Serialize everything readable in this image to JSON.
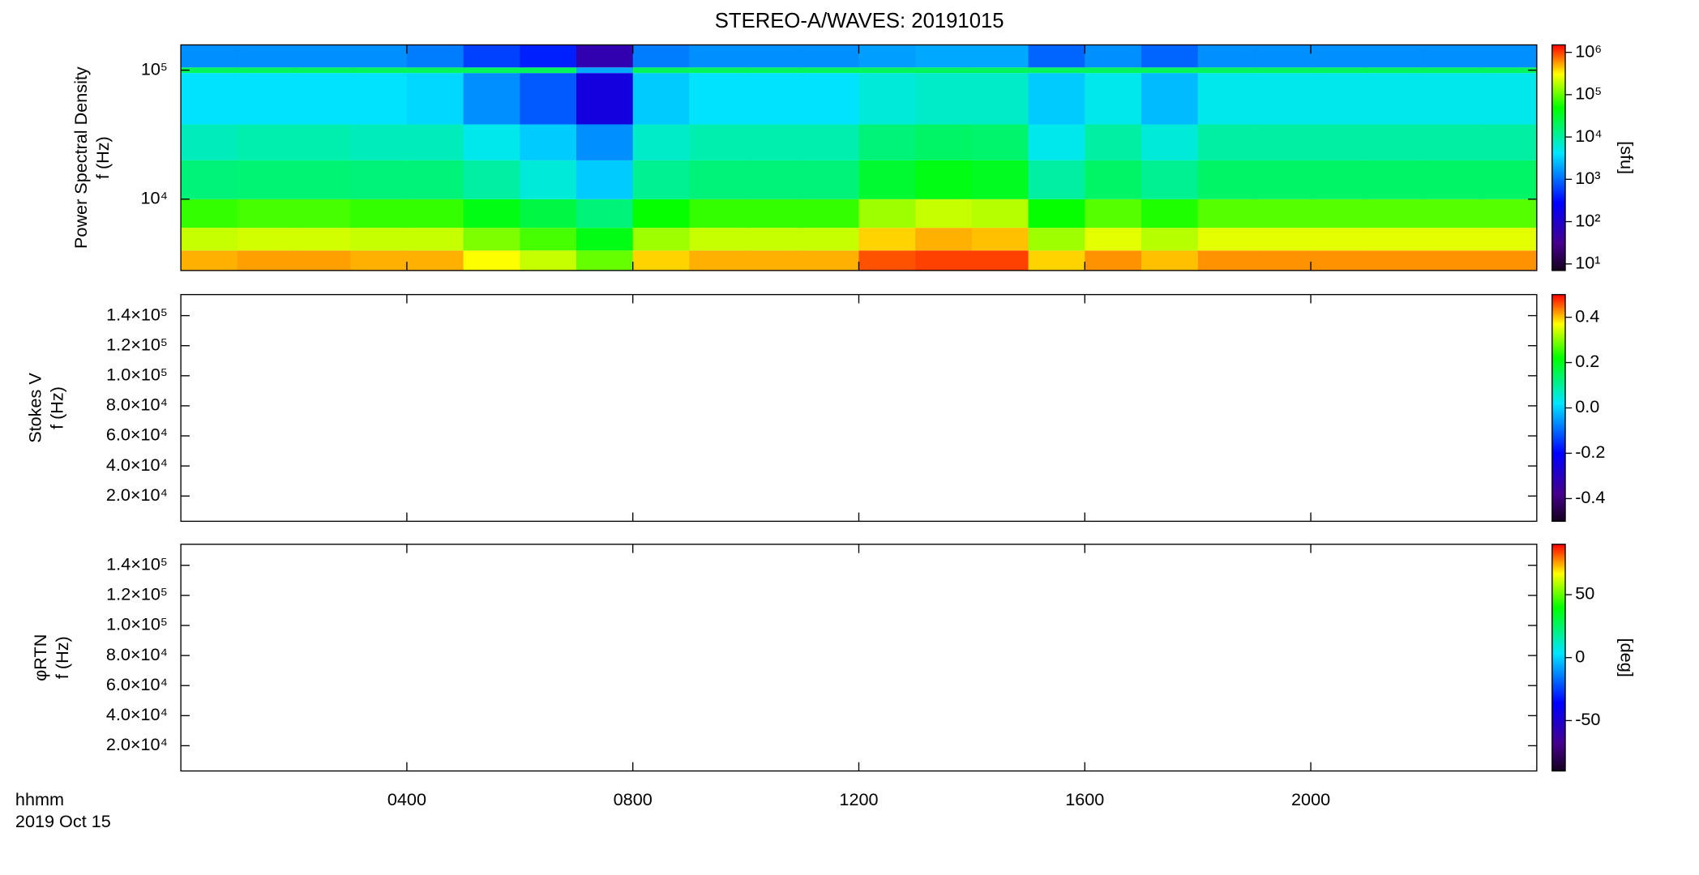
{
  "chart_data": {
    "type": "spectrogram",
    "title": "STEREO-A/WAVES: 20191015",
    "xlabel": "hhmm",
    "date": "2019 Oct 15",
    "xlim": [
      0,
      24
    ],
    "xticks": [
      {
        "value": 4,
        "label": "0400"
      },
      {
        "value": 8,
        "label": "0800"
      },
      {
        "value": 12,
        "label": "1200"
      },
      {
        "value": 16,
        "label": "1600"
      },
      {
        "value": 20,
        "label": "2000"
      }
    ],
    "panels": [
      {
        "ylabel": [
          "Power Spectral Density",
          "f (Hz)"
        ],
        "log_y": true,
        "ylim": [
          2800,
          157000
        ],
        "yticks": [
          {
            "value": 10000,
            "label": "10⁴"
          },
          {
            "value": 100000,
            "label": "10⁵"
          }
        ],
        "colorbar": {
          "label": "[sfu]",
          "log": true,
          "lim": [
            7,
            1500000
          ],
          "ticks": [
            {
              "value": 10,
              "label": "10¹"
            },
            {
              "value": 100,
              "label": "10²"
            },
            {
              "value": 1000,
              "label": "10³"
            },
            {
              "value": 10000,
              "label": "10⁴"
            },
            {
              "value": 100000,
              "label": "10⁵"
            },
            {
              "value": 1000000,
              "label": "10⁶"
            }
          ]
        },
        "time_edges": [
          0,
          1,
          2,
          3,
          4,
          5,
          6,
          7,
          8,
          9,
          10,
          11,
          12,
          13,
          14,
          15,
          16,
          17,
          18,
          19,
          20,
          21,
          22,
          23,
          24
        ],
        "freq_edges": [
          2800,
          4000,
          6000,
          10000,
          20000,
          38000,
          95000,
          105000,
          157000
        ],
        "z": [
          [
            500000,
            550000,
            550000,
            500000,
            500000,
            300000,
            200000,
            100000,
            400000,
            500000,
            500000,
            500000,
            900000,
            1000000,
            1000000,
            400000,
            600000,
            450000,
            600000,
            600000,
            600000,
            600000,
            600000,
            600000
          ],
          [
            200000,
            220000,
            220000,
            200000,
            200000,
            120000,
            80000,
            40000,
            150000,
            200000,
            200000,
            200000,
            400000,
            500000,
            450000,
            150000,
            250000,
            180000,
            250000,
            250000,
            250000,
            250000,
            250000,
            250000
          ],
          [
            70000,
            80000,
            80000,
            70000,
            70000,
            40000,
            25000,
            15000,
            50000,
            70000,
            70000,
            70000,
            150000,
            200000,
            180000,
            50000,
            90000,
            60000,
            90000,
            90000,
            90000,
            90000,
            90000,
            90000
          ],
          [
            15000,
            16000,
            16000,
            15000,
            15000,
            10000,
            6000,
            3000,
            12000,
            15000,
            15000,
            15000,
            30000,
            40000,
            35000,
            10000,
            18000,
            12000,
            18000,
            18000,
            18000,
            18000,
            18000,
            18000
          ],
          [
            8000,
            9000,
            9000,
            8000,
            8000,
            5000,
            3000,
            1500,
            7000,
            9000,
            9000,
            9000,
            15000,
            18000,
            17000,
            5000,
            10000,
            6000,
            10000,
            10000,
            10000,
            10000,
            10000,
            10000
          ],
          [
            4000,
            4000,
            4000,
            4000,
            3500,
            1500,
            800,
            150,
            3000,
            4000,
            4000,
            4000,
            6000,
            7000,
            7000,
            3000,
            5000,
            2500,
            5000,
            5000,
            5000,
            5000,
            5000,
            5000
          ],
          [
            20000,
            20000,
            20000,
            20000,
            20000,
            20000,
            20000,
            2000,
            20000,
            20000,
            20000,
            20000,
            20000,
            20000,
            20000,
            20000,
            20000,
            20000,
            20000,
            20000,
            20000,
            20000,
            20000,
            20000
          ],
          [
            1500,
            1500,
            1500,
            1500,
            1200,
            600,
            400,
            60,
            1200,
            1500,
            1500,
            1500,
            1800,
            2000,
            2000,
            900,
            1500,
            900,
            1500,
            1500,
            1500,
            1500,
            1500,
            1500
          ]
        ]
      },
      {
        "ylabel": [
          "Stokes V",
          "f (Hz)"
        ],
        "log_y": false,
        "ylim": [
          3200,
          154000
        ],
        "yticks": [
          {
            "value": 20000,
            "label": "2.0×10⁴"
          },
          {
            "value": 40000,
            "label": "4.0×10⁴"
          },
          {
            "value": 60000,
            "label": "6.0×10⁴"
          },
          {
            "value": 80000,
            "label": "8.0×10⁴"
          },
          {
            "value": 100000,
            "label": "1.0×10⁵"
          },
          {
            "value": 120000,
            "label": "1.2×10⁵"
          },
          {
            "value": 140000,
            "label": "1.4×10⁵"
          }
        ],
        "colorbar": {
          "log": false,
          "lim": [
            -0.5,
            0.5
          ],
          "ticks": [
            -0.4,
            -0.2,
            {
              "value": 0,
              "label": "0.0"
            },
            0.2,
            0.4
          ]
        }
      },
      {
        "ylabel": [
          "φRTN",
          "f (Hz)"
        ],
        "log_y": false,
        "ylim": [
          3200,
          154000
        ],
        "yticks": [
          {
            "value": 20000,
            "label": "2.0×10⁴"
          },
          {
            "value": 40000,
            "label": "4.0×10⁴"
          },
          {
            "value": 60000,
            "label": "6.0×10⁴"
          },
          {
            "value": 80000,
            "label": "8.0×10⁴"
          },
          {
            "value": 100000,
            "label": "1.0×10⁵"
          },
          {
            "value": 120000,
            "label": "1.2×10⁵"
          },
          {
            "value": 140000,
            "label": "1.4×10⁵"
          }
        ],
        "colorbar": {
          "label": "[deg]",
          "log": false,
          "lim": [
            -90,
            90
          ],
          "ticks": [
            -50,
            0,
            50
          ]
        }
      }
    ]
  }
}
